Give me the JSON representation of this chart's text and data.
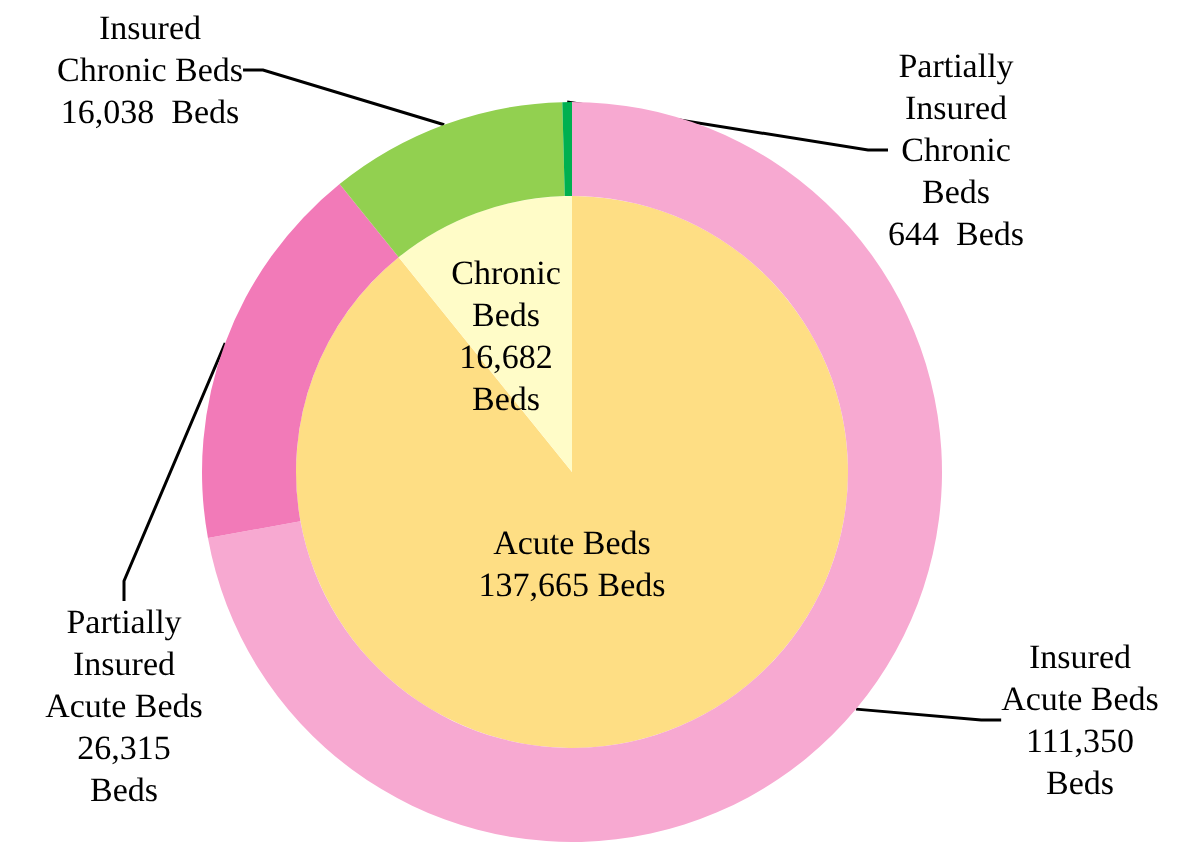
{
  "chart_data": [
    {
      "type": "pie",
      "categories": [
        "Acute Beds",
        "Chronic\nBeds"
      ],
      "values": [
        137665,
        16682
      ],
      "value_labels": [
        "137,665 Beds",
        "16,682\nBeds"
      ],
      "colors": [
        "#fede84",
        "#fffcc8"
      ]
    },
    {
      "type": "donut",
      "categories": [
        "Insured\nAcute Beds",
        "Partially\nInsured\nAcute Beds",
        "Insured\nChronic Beds",
        "Partially\nInsured\nChronic\nBeds"
      ],
      "values": [
        111350,
        26315,
        16038,
        644
      ],
      "value_labels": [
        "111,350\nBeds",
        "26,315\nBeds",
        "16,038  Beds",
        "644  Beds"
      ],
      "colors": [
        "#f7a9d1",
        "#f27ab8",
        "#92d050",
        "#00b050"
      ]
    }
  ]
}
